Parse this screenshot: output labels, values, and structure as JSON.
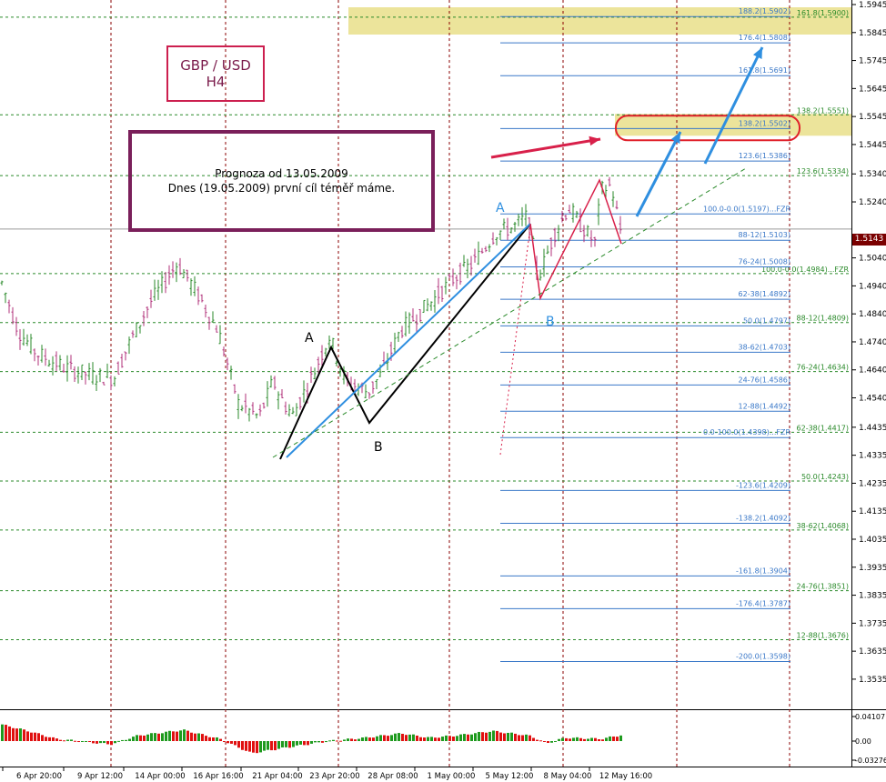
{
  "chart_data": {
    "type": "candlestick",
    "symbol_label": "GBP / USD",
    "timeframe_label": "H4",
    "note_line1": "Prognoza od 13.05.2009",
    "note_line2": "Dnes (19.05.2009)  první cíl téměř máme.",
    "current_price": "1.5143",
    "price_axis": {
      "ylim": [
        1.3535,
        1.5945
      ],
      "ticks": [
        "1.5945",
        "1.5845",
        "1.5745",
        "1.5645",
        "1.5545",
        "1.5445",
        "1.5340",
        "1.5240",
        "1.5143",
        "1.5040",
        "1.4940",
        "1.4840",
        "1.4740",
        "1.4640",
        "1.4540",
        "1.4435",
        "1.4335",
        "1.4235",
        "1.4135",
        "1.4035",
        "1.3935",
        "1.3835",
        "1.3735",
        "1.3635",
        "1.3535"
      ]
    },
    "time_axis": {
      "ticks": [
        "6 Apr 20:00",
        "9 Apr 12:00",
        "14 Apr 00:00",
        "16 Apr 16:00",
        "21 Apr 04:00",
        "23 Apr 20:00",
        "28 Apr 08:00",
        "1 May 00:00",
        "5 May 12:00",
        "8 May 04:00",
        "12 May 16:00"
      ]
    },
    "oscillator": {
      "ticks": [
        "0.04107",
        "0.00",
        "-0.03276"
      ],
      "ylim": [
        -0.03276,
        0.04107
      ]
    },
    "wave_labels": [
      {
        "text": "A",
        "group": "first"
      },
      {
        "text": "B",
        "group": "first"
      },
      {
        "text": "A",
        "group": "second"
      },
      {
        "text": "B",
        "group": "second"
      }
    ],
    "fib_blue": [
      {
        "label": "188.2(1.5902)",
        "price": 1.5902
      },
      {
        "label": "176.4(1.5808)",
        "price": 1.5808
      },
      {
        "label": "161.8(1.5691)",
        "price": 1.5691
      },
      {
        "label": "138.2(1.5502)",
        "price": 1.5502
      },
      {
        "label": "123.6(1.5386)",
        "price": 1.5386
      },
      {
        "label": "100.0-0.0(1.5197)...FZR",
        "price": 1.5197
      },
      {
        "label": "88-12(1.5103)",
        "price": 1.5103
      },
      {
        "label": "76-24(1.5008)",
        "price": 1.5008
      },
      {
        "label": "62-38(1.4892)",
        "price": 1.4892
      },
      {
        "label": "50.0(1.4797)",
        "price": 1.4797
      },
      {
        "label": "38-62(1.4703)",
        "price": 1.4703
      },
      {
        "label": "24-76(1.4586)",
        "price": 1.4586
      },
      {
        "label": "12-88(1.4492)",
        "price": 1.4492
      },
      {
        "label": "0.0-100.0(1.4398)...FZR",
        "price": 1.4398
      },
      {
        "label": "-123.6(1.4209)",
        "price": 1.4209
      },
      {
        "label": "-138.2(1.4092)",
        "price": 1.4092
      },
      {
        "label": "-161.8(1.3904)",
        "price": 1.3904
      },
      {
        "label": "-176.4(1.3787)",
        "price": 1.3787
      },
      {
        "label": "-200.0(1.3598)",
        "price": 1.3598
      }
    ],
    "fib_green": [
      {
        "label": "161.8(1.5900)",
        "price": 1.59
      },
      {
        "label": "138.2(1.5551)",
        "price": 1.5551
      },
      {
        "label": "123.6(1.5334)",
        "price": 1.5334
      },
      {
        "label": "100.0-0.0(1.4984)...FZR",
        "price": 1.4984
      },
      {
        "label": "88-12(1.4809)",
        "price": 1.4809
      },
      {
        "label": "76-24(1.4634)",
        "price": 1.4634
      },
      {
        "label": "62-38(1.4417)",
        "price": 1.4417
      },
      {
        "label": "50.0(1.4243)",
        "price": 1.4243
      },
      {
        "label": "38-62(1.4068)",
        "price": 1.4068
      },
      {
        "label": "24-76(1.3851)",
        "price": 1.3851
      },
      {
        "label": "12-88(1.3676)",
        "price": 1.3676
      }
    ],
    "colors": {
      "bull": "#2a8a2a",
      "bear": "#b0307a",
      "fib_blue": "#3a78c8",
      "fib_green": "#2a8a2a",
      "arrow_blue": "#2f8fe0",
      "arrow_red": "#d8204a",
      "target_zone": "#e9df8a",
      "time_grid": "#8b0000"
    }
  }
}
